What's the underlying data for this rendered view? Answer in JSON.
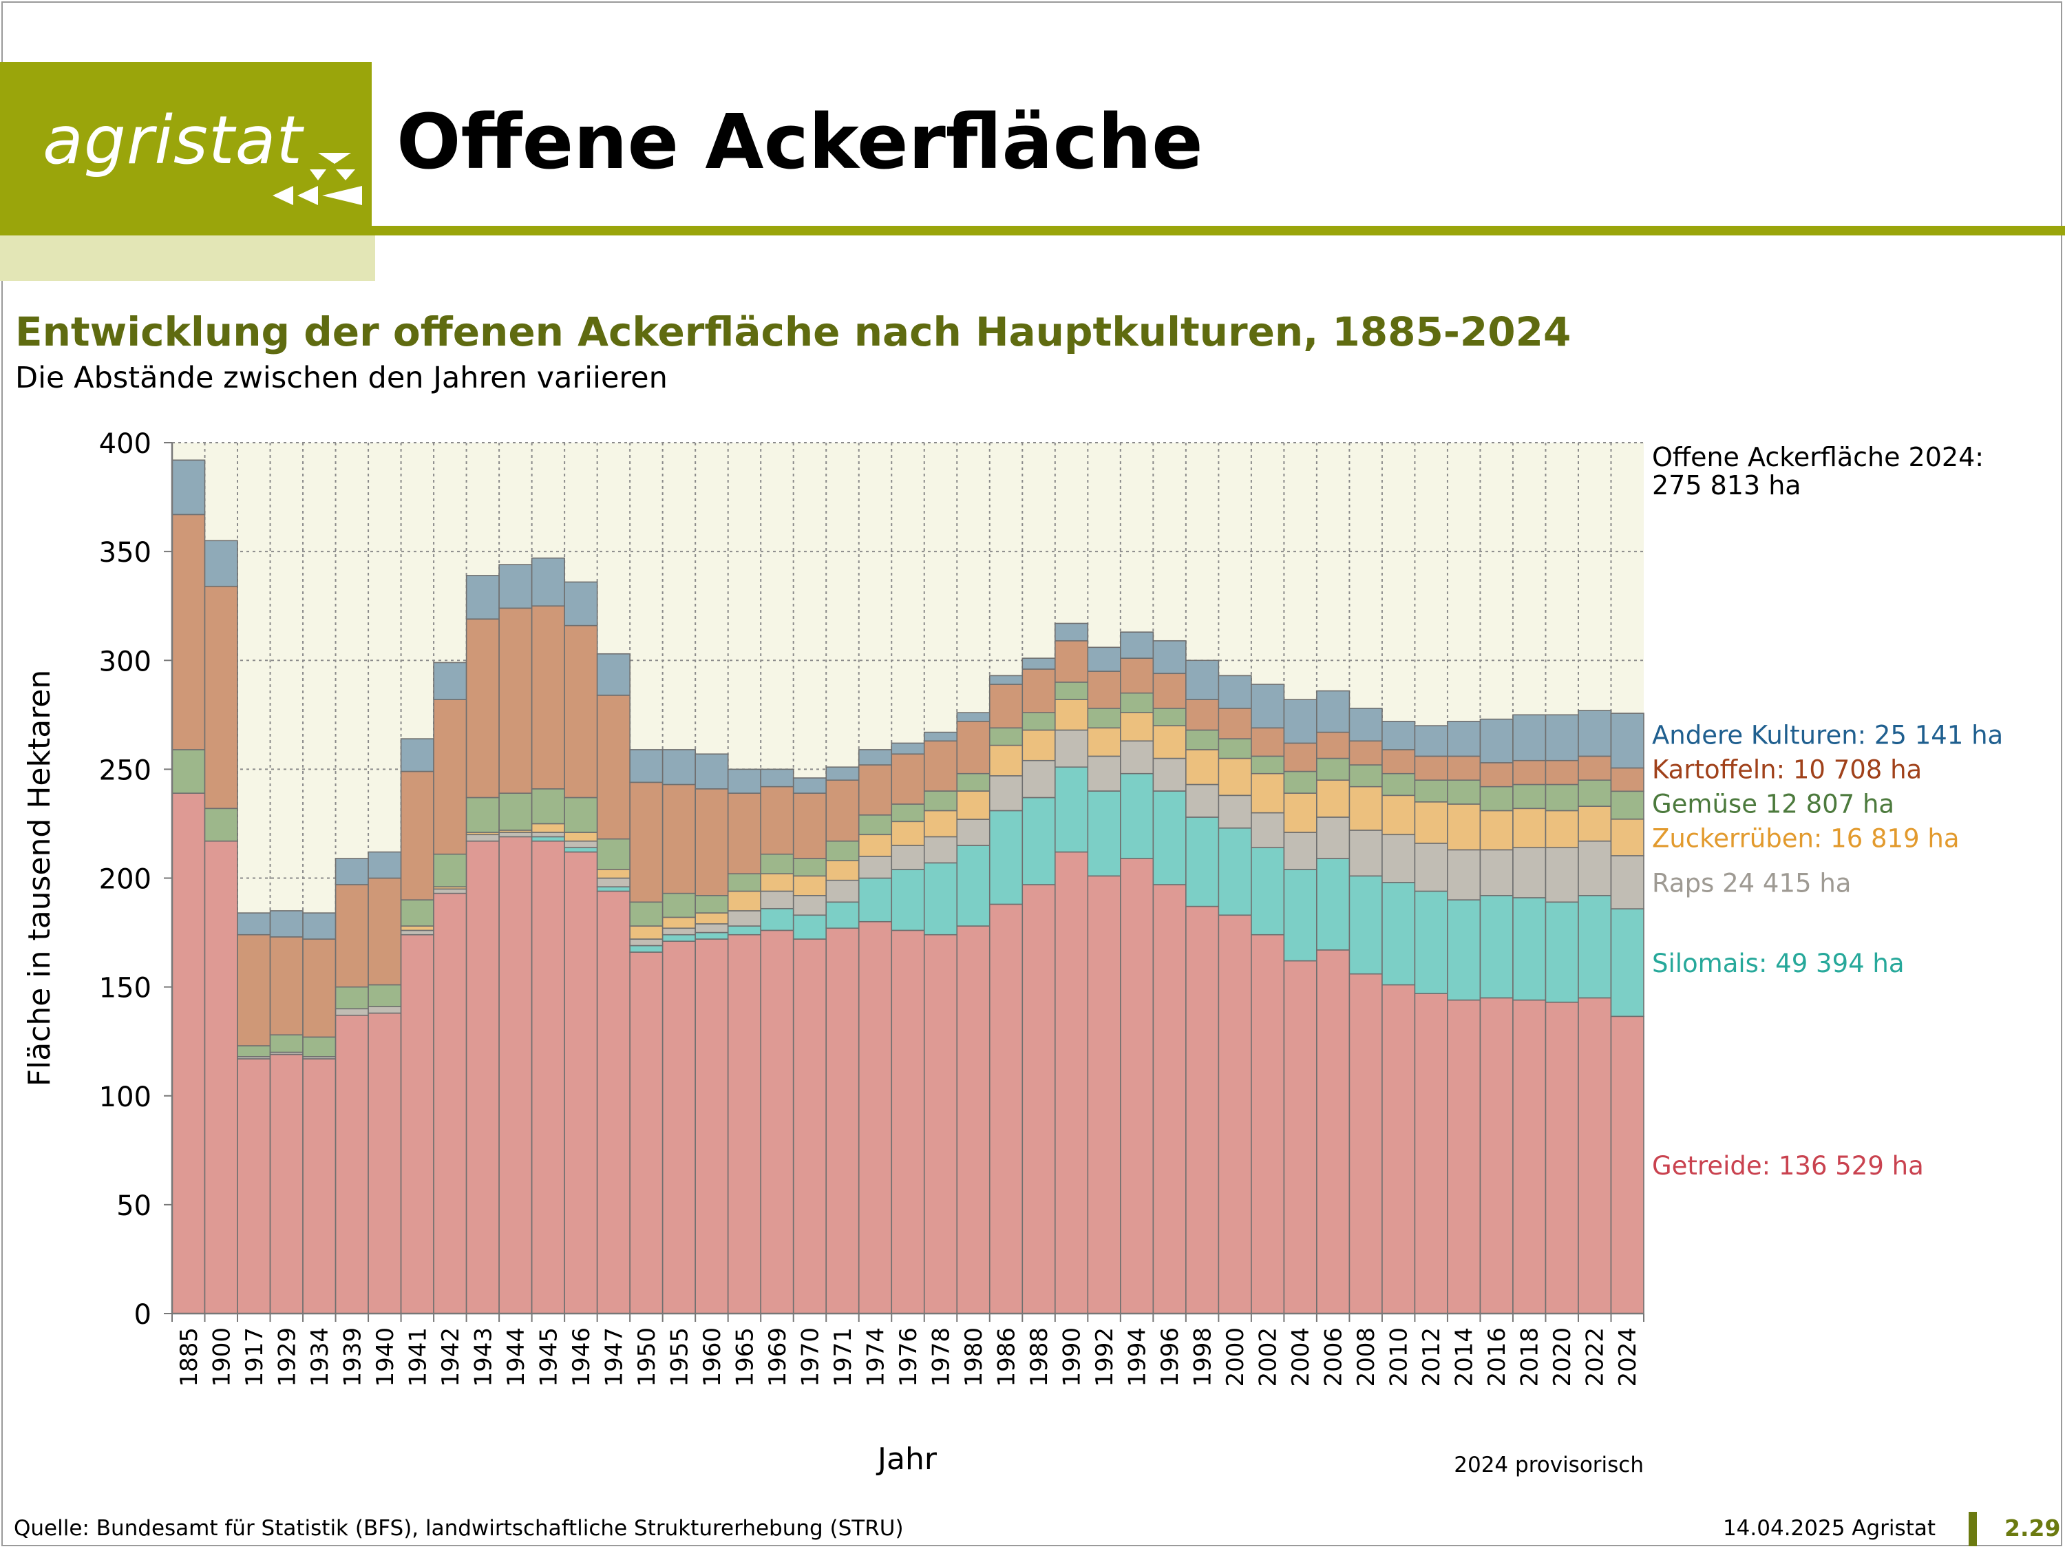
{
  "header": {
    "logo_text": "agristat",
    "title": "Offene Ackerfläche"
  },
  "subtitle": "Entwicklung der offenen Ackerfläche nach Hauptkulturen, 1885-2024",
  "subsubtitle": "Die Abstände zwischen den Jahren variieren",
  "footer": {
    "source": "Quelle: Bundesamt für Statistik (BFS), landwirtschaftliche Strukturerhebung (STRU)",
    "date": "14.04.2025 Agristat",
    "page": "2.29"
  },
  "colors": {
    "accent": "#9aa50b",
    "subtitle": "#5f6b10",
    "plot_background": "#f6f6e6"
  },
  "chart_data": {
    "type": "bar",
    "stacked": true,
    "xlabel": "Jahr",
    "ylabel": "Fläche in tausend Hektaren",
    "ylim": [
      0,
      400
    ],
    "yticks": [
      0,
      50,
      100,
      150,
      200,
      250,
      300,
      350,
      400
    ],
    "grid": true,
    "note": "2024 provisorisch",
    "total_annotation": [
      "Offene Ackerfläche 2024:",
      "275 813 ha"
    ],
    "categories": [
      "1885",
      "1900",
      "1917",
      "1929",
      "1934",
      "1939",
      "1940",
      "1941",
      "1942",
      "1943",
      "1944",
      "1945",
      "1946",
      "1947",
      "1950",
      "1955",
      "1960",
      "1965",
      "1969",
      "1970",
      "1971",
      "1974",
      "1976",
      "1978",
      "1980",
      "1986",
      "1988",
      "1990",
      "1992",
      "1994",
      "1996",
      "1998",
      "2000",
      "2002",
      "2004",
      "2006",
      "2008",
      "2010",
      "2012",
      "2014",
      "2016",
      "2018",
      "2020",
      "2022",
      "2024"
    ],
    "series": [
      {
        "name": "Getreide",
        "label": "Getreide: 136 529 ha",
        "color": "#de9a94",
        "values": [
          239,
          217,
          117,
          119,
          117,
          137,
          138,
          174,
          193,
          217,
          219,
          217,
          212,
          194,
          166,
          171,
          172,
          174,
          176,
          172,
          177,
          180,
          176,
          174,
          178,
          188,
          197,
          212,
          201,
          209,
          197,
          187,
          183,
          174,
          162,
          167,
          156,
          151,
          147,
          144,
          145,
          144,
          143,
          145,
          136.5
        ]
      },
      {
        "name": "Silomais",
        "label": "Silomais: 49 394 ha",
        "color": "#7ccfc6",
        "values": [
          0,
          0,
          0,
          0,
          0,
          0,
          0,
          0,
          0,
          0,
          0,
          2,
          2,
          2,
          3,
          3,
          3,
          4,
          10,
          11,
          12,
          20,
          28,
          33,
          37,
          43,
          40,
          39,
          39,
          39,
          43,
          41,
          40,
          40,
          42,
          42,
          45,
          47,
          47,
          46,
          47,
          47,
          46,
          47,
          49.4
        ]
      },
      {
        "name": "Raps",
        "label": "Raps 24 415 ha",
        "color": "#c1bdb4",
        "values": [
          0,
          0,
          1,
          1,
          1,
          3,
          3,
          2,
          2,
          3,
          2,
          2,
          3,
          4,
          3,
          3,
          4,
          7,
          8,
          9,
          10,
          10,
          11,
          12,
          12,
          16,
          17,
          17,
          16,
          15,
          15,
          15,
          15,
          16,
          17,
          19,
          21,
          22,
          22,
          23,
          21,
          23,
          25,
          25,
          24.4
        ]
      },
      {
        "name": "Zuckerrüben",
        "label": "Zuckerrüben: 16 819 ha",
        "color": "#ecc07e",
        "values": [
          0,
          0,
          0,
          0,
          0,
          0,
          0,
          2,
          1,
          1,
          1,
          4,
          4,
          4,
          6,
          5,
          5,
          9,
          8,
          9,
          9,
          10,
          11,
          12,
          13,
          14,
          14,
          14,
          13,
          13,
          15,
          16,
          17,
          18,
          18,
          17,
          20,
          18,
          19,
          21,
          18,
          18,
          17,
          16,
          16.8
        ]
      },
      {
        "name": "Gemüse",
        "label": "Gemüse 12 807 ha",
        "color": "#9db78b",
        "values": [
          20,
          15,
          5,
          8,
          9,
          10,
          10,
          12,
          15,
          16,
          17,
          16,
          16,
          14,
          11,
          11,
          8,
          8,
          9,
          8,
          9,
          9,
          8,
          9,
          8,
          8,
          8,
          8,
          9,
          9,
          8,
          9,
          9,
          8,
          10,
          10,
          10,
          10,
          10,
          11,
          11,
          11,
          12,
          12,
          12.8
        ]
      },
      {
        "name": "Kartoffeln",
        "label": "Kartoffeln: 10 708 ha",
        "color": "#cf9877",
        "values": [
          108,
          102,
          51,
          45,
          45,
          47,
          49,
          59,
          71,
          82,
          85,
          84,
          79,
          66,
          55,
          50,
          49,
          37,
          31,
          30,
          28,
          23,
          23,
          23,
          24,
          20,
          20,
          19,
          17,
          16,
          16,
          14,
          14,
          13,
          13,
          12,
          11,
          11,
          11,
          11,
          11,
          11,
          11,
          11,
          10.7
        ]
      },
      {
        "name": "Andere Kulturen",
        "label": "Andere Kulturen: 25 141 ha",
        "color": "#8faab8",
        "values": [
          25,
          21,
          10,
          12,
          12,
          12,
          12,
          15,
          17,
          20,
          20,
          22,
          20,
          19,
          15,
          16,
          16,
          11,
          8,
          7,
          6,
          7,
          5,
          4,
          4,
          4,
          5,
          8,
          11,
          12,
          15,
          18,
          15,
          20,
          20,
          19,
          15,
          13,
          14,
          16,
          20,
          21,
          21,
          21,
          25.1
        ]
      }
    ]
  }
}
